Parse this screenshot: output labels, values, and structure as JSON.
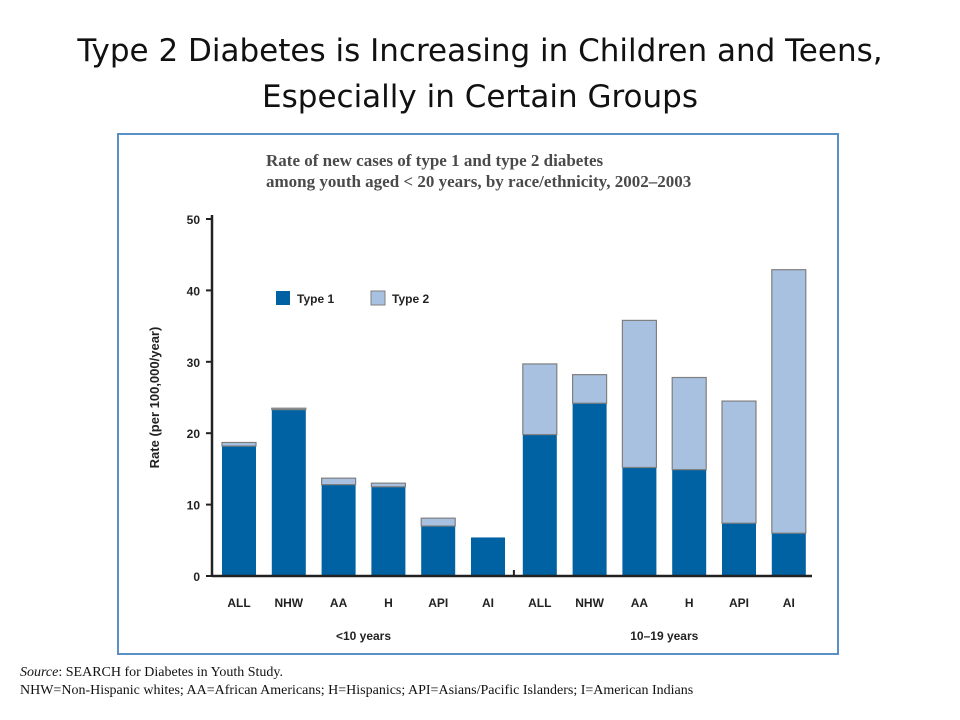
{
  "slide": {
    "title_line1": "Type 2 Diabetes is Increasing in Children and Teens,",
    "title_line2": "Especially in Certain Groups"
  },
  "colors": {
    "type1": "#0062a3",
    "type2": "#a9c1e0",
    "frame": "#5b8fc7",
    "axis": "#222222"
  },
  "chart_data": {
    "type": "bar",
    "stacked": true,
    "title_line1": "Rate of new cases of type 1 and type 2 diabetes",
    "title_line2": "among youth aged < 20 years, by race/ethnicity, 2002–2003",
    "ylabel": "Rate (per 100,000/year)",
    "ylim": [
      0,
      50
    ],
    "yticks": [
      0,
      10,
      20,
      30,
      40,
      50
    ],
    "categories": [
      "ALL",
      "NHW",
      "AA",
      "H",
      "API",
      "AI",
      "ALL",
      "NHW",
      "AA",
      "H",
      "API",
      "AI"
    ],
    "groups": [
      {
        "label": "<10 years",
        "start": 0,
        "end": 5
      },
      {
        "label": "10–19 years",
        "start": 6,
        "end": 11
      }
    ],
    "series": [
      {
        "name": "Type 1",
        "values": [
          18.2,
          23.3,
          12.8,
          12.5,
          7.0,
          5.4,
          19.8,
          24.2,
          15.2,
          14.9,
          7.4,
          6.0
        ]
      },
      {
        "name": "Type 2",
        "values": [
          0.5,
          0.2,
          0.9,
          0.5,
          1.1,
          0.0,
          9.9,
          4.0,
          20.6,
          12.9,
          17.1,
          36.9
        ]
      }
    ],
    "legend_position": "top-left"
  },
  "footnote": {
    "source_label": "Source",
    "source_text": ": SEARCH for Diabetes in Youth Study.",
    "abbreviations": "NHW=Non-Hispanic whites; AA=African Americans; H=Hispanics; API=Asians/Pacific Islanders; I=American Indians"
  }
}
